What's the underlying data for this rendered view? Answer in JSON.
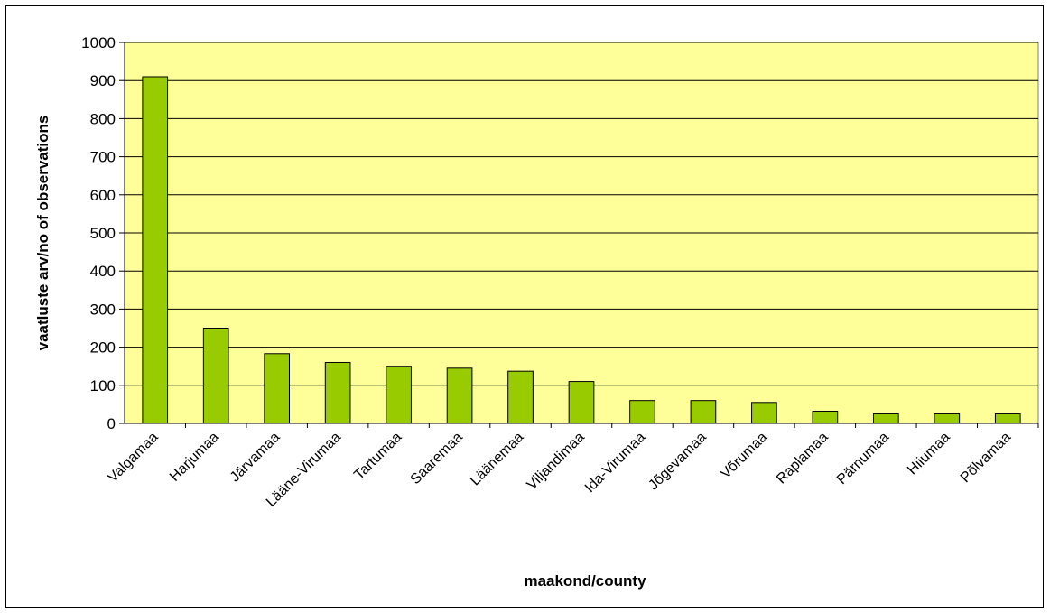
{
  "chart_data": {
    "type": "bar",
    "title": "",
    "xlabel": "maakond/county",
    "ylabel": "vaatluste arv/no of observations",
    "ylim": [
      0,
      1000
    ],
    "yticks": [
      0,
      100,
      200,
      300,
      400,
      500,
      600,
      700,
      800,
      900,
      1000
    ],
    "grid": true,
    "legend": "none",
    "categories": [
      "Valgamaa",
      "Harjumaa",
      "Järvamaa",
      "Lääne-Virumaa",
      "Tartumaa",
      "Saaremaa",
      "Läänemaa",
      "Viljandimaa",
      "Ida-Virumaa",
      "Jõgevamaa",
      "Võrumaa",
      "Raplamaa",
      "Pärnumaa",
      "Hiiumaa",
      "Põlvamaa"
    ],
    "values": [
      910,
      250,
      183,
      160,
      150,
      145,
      137,
      110,
      60,
      60,
      55,
      32,
      25,
      25,
      25
    ]
  },
  "colors": {
    "plot_background": "#ffff99",
    "bar_fill": "#99cc00",
    "bar_stroke": "#000000",
    "grid": "#000000"
  }
}
